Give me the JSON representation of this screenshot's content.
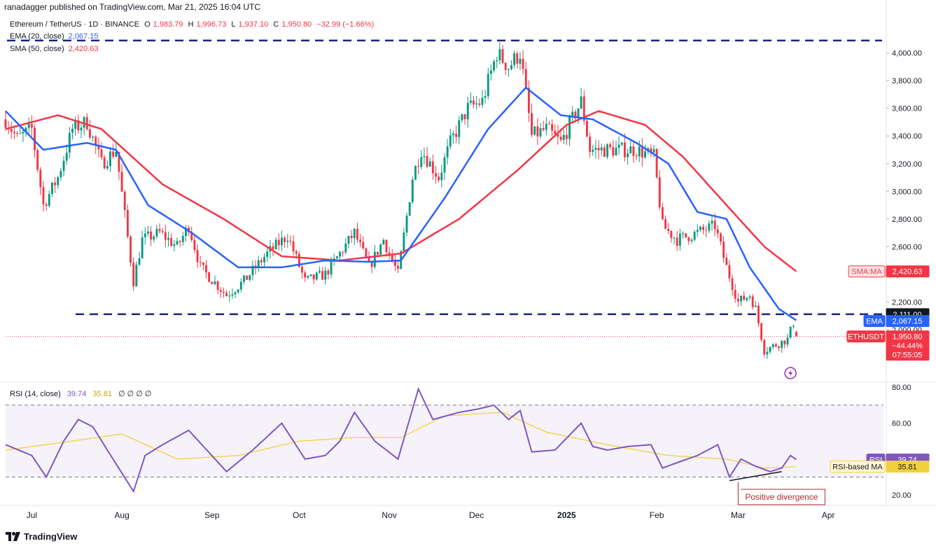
{
  "header": {
    "publisher": "ranadagger published on TradingView.com, Mar 21, 2025 16:04 UTC"
  },
  "legend": {
    "symbol": "Ethereum / TetherUS · 1D · BINANCE",
    "ohlc": {
      "o_label": "O",
      "o": "1,983.79",
      "h_label": "H",
      "h": "1,996.73",
      "l_label": "L",
      "l": "1,937.10",
      "c_label": "C",
      "c": "1,950.80",
      "change": "−32.99 (−1.66%)"
    },
    "ema_label": "EMA (20, close)",
    "ema_value": "2,067.15",
    "sma_label": "SMA (50, close)",
    "sma_value": "2,420.63",
    "rsi_label": "RSI (14, close)",
    "rsi_value": "39.74",
    "rsi_ma_value": "35.81",
    "rsi_extra": "∅ ∅ ∅ ∅"
  },
  "axis": {
    "unit": "USDT"
  },
  "badges": {
    "sma_tag": "SMA:MA",
    "sma_price": "2,420.63",
    "level_price": "2,111.00",
    "ema_tag": "EMA",
    "ema_price": "2,067.15",
    "sym_tag": "ETHUSDT",
    "last_price": "1,950.80",
    "last_change": "−44.44%",
    "countdown": "07:55:05",
    "rsi_tag": "RSI",
    "rsi_value": "39.74",
    "rsi_ma_tag": "RSI-based MA",
    "rsi_ma_value": "35.81"
  },
  "annotations": {
    "divergence": "Positive divergence"
  },
  "footer": {
    "brand": "TradingView"
  },
  "colors": {
    "up": "#089981",
    "down": "#f23645",
    "ema": "#2962ff",
    "sma": "#f23645",
    "rsi": "#7e57c2",
    "rsi_ma": "#f2d13f",
    "level": "#1a237e"
  },
  "chart_data": [
    {
      "type": "candlestick",
      "title": "Ethereum / TetherUS · 1D · BINANCE",
      "x_ticks": [
        "Jul",
        "Aug",
        "Sep",
        "Oct",
        "Nov",
        "Dec",
        "2025",
        "Feb",
        "Mar",
        "Apr"
      ],
      "x_range": [
        "2024-06-22",
        "2025-04-20"
      ],
      "y_ticks": [
        "2,000.00",
        "2,200.00",
        "2,400.00",
        "2,600.00",
        "2,800.00",
        "3,000.00",
        "3,200.00",
        "3,400.00",
        "3,600.00",
        "3,800.00",
        "4,000.00"
      ],
      "ylim": [
        1650,
        4130
      ],
      "horizontal_levels": [
        4090,
        2111
      ],
      "last_price": 1950.8,
      "price_keypoints": [
        [
          "2024-06-22",
          3520
        ],
        [
          "2024-06-26",
          3380
        ],
        [
          "2024-07-01",
          3450
        ],
        [
          "2024-07-05",
          2900
        ],
        [
          "2024-07-10",
          3100
        ],
        [
          "2024-07-15",
          3450
        ],
        [
          "2024-07-20",
          3500
        ],
        [
          "2024-07-25",
          3200
        ],
        [
          "2024-07-30",
          3300
        ],
        [
          "2024-08-05",
          2350
        ],
        [
          "2024-08-08",
          2650
        ],
        [
          "2024-08-14",
          2700
        ],
        [
          "2024-08-20",
          2600
        ],
        [
          "2024-08-24",
          2750
        ],
        [
          "2024-08-28",
          2450
        ],
        [
          "2024-09-06",
          2250
        ],
        [
          "2024-09-12",
          2350
        ],
        [
          "2024-09-20",
          2550
        ],
        [
          "2024-09-27",
          2680
        ],
        [
          "2024-10-03",
          2350
        ],
        [
          "2024-10-10",
          2400
        ],
        [
          "2024-10-15",
          2550
        ],
        [
          "2024-10-20",
          2700
        ],
        [
          "2024-10-25",
          2450
        ],
        [
          "2024-10-30",
          2650
        ],
        [
          "2024-11-04",
          2400
        ],
        [
          "2024-11-09",
          3100
        ],
        [
          "2024-11-12",
          3300
        ],
        [
          "2024-11-18",
          3100
        ],
        [
          "2024-11-22",
          3350
        ],
        [
          "2024-11-28",
          3600
        ],
        [
          "2024-12-03",
          3650
        ],
        [
          "2024-12-08",
          4000
        ],
        [
          "2024-12-12",
          3900
        ],
        [
          "2024-12-16",
          4000
        ],
        [
          "2024-12-20",
          3400
        ],
        [
          "2024-12-25",
          3450
        ],
        [
          "2024-12-30",
          3350
        ],
        [
          "2025-01-06",
          3650
        ],
        [
          "2025-01-09",
          3300
        ],
        [
          "2025-01-15",
          3300
        ],
        [
          "2025-01-20",
          3300
        ],
        [
          "2025-01-25",
          3300
        ],
        [
          "2025-01-31",
          3250
        ],
        [
          "2025-02-03",
          2750
        ],
        [
          "2025-02-08",
          2650
        ],
        [
          "2025-02-15",
          2700
        ],
        [
          "2025-02-21",
          2750
        ],
        [
          "2025-02-25",
          2450
        ],
        [
          "2025-03-01",
          2200
        ],
        [
          "2025-03-05",
          2250
        ],
        [
          "2025-03-07",
          2150
        ],
        [
          "2025-03-10",
          1850
        ],
        [
          "2025-03-15",
          1900
        ],
        [
          "2025-03-18",
          1930
        ],
        [
          "2025-03-20",
          2050
        ],
        [
          "2025-03-21",
          1950.8
        ]
      ],
      "ema20_keypoints": [
        [
          "2024-06-22",
          3580
        ],
        [
          "2024-07-05",
          3300
        ],
        [
          "2024-07-20",
          3350
        ],
        [
          "2024-07-30",
          3300
        ],
        [
          "2024-08-10",
          2900
        ],
        [
          "2024-08-25",
          2700
        ],
        [
          "2024-09-10",
          2450
        ],
        [
          "2024-09-25",
          2450
        ],
        [
          "2024-10-10",
          2500
        ],
        [
          "2024-10-25",
          2490
        ],
        [
          "2024-11-05",
          2500
        ],
        [
          "2024-11-20",
          2950
        ],
        [
          "2024-12-05",
          3450
        ],
        [
          "2024-12-18",
          3750
        ],
        [
          "2024-12-30",
          3550
        ],
        [
          "2025-01-10",
          3520
        ],
        [
          "2025-01-25",
          3350
        ],
        [
          "2025-02-05",
          3200
        ],
        [
          "2025-02-15",
          2850
        ],
        [
          "2025-02-25",
          2800
        ],
        [
          "2025-03-05",
          2450
        ],
        [
          "2025-03-15",
          2150
        ],
        [
          "2025-03-21",
          2067.15
        ]
      ],
      "sma50_keypoints": [
        [
          "2024-06-22",
          3450
        ],
        [
          "2024-07-10",
          3550
        ],
        [
          "2024-07-25",
          3450
        ],
        [
          "2024-08-15",
          3050
        ],
        [
          "2024-09-05",
          2800
        ],
        [
          "2024-09-25",
          2530
        ],
        [
          "2024-10-15",
          2500
        ],
        [
          "2024-11-05",
          2550
        ],
        [
          "2024-11-25",
          2800
        ],
        [
          "2024-12-15",
          3150
        ],
        [
          "2025-01-01",
          3480
        ],
        [
          "2025-01-12",
          3580
        ],
        [
          "2025-01-28",
          3480
        ],
        [
          "2025-02-10",
          3250
        ],
        [
          "2025-02-25",
          2900
        ],
        [
          "2025-03-10",
          2600
        ],
        [
          "2025-03-21",
          2420.63
        ]
      ]
    },
    {
      "type": "line",
      "title": "RSI (14, close)",
      "y_ticks": [
        "20.00",
        "40.00",
        "60.00",
        "80.00"
      ],
      "ylim": [
        15,
        82
      ],
      "bands": {
        "lower": 30,
        "upper": 70
      },
      "rsi_keypoints": [
        [
          "2024-06-22",
          48
        ],
        [
          "2024-07-01",
          42
        ],
        [
          "2024-07-06",
          30
        ],
        [
          "2024-07-12",
          50
        ],
        [
          "2024-07-17",
          62
        ],
        [
          "2024-07-22",
          58
        ],
        [
          "2024-07-27",
          45
        ],
        [
          "2024-08-05",
          22
        ],
        [
          "2024-08-09",
          42
        ],
        [
          "2024-08-15",
          48
        ],
        [
          "2024-08-24",
          56
        ],
        [
          "2024-09-06",
          33
        ],
        [
          "2024-09-15",
          45
        ],
        [
          "2024-09-25",
          60
        ],
        [
          "2024-10-03",
          40
        ],
        [
          "2024-10-10",
          42
        ],
        [
          "2024-10-15",
          50
        ],
        [
          "2024-10-20",
          66
        ],
        [
          "2024-10-27",
          50
        ],
        [
          "2024-11-04",
          40
        ],
        [
          "2024-11-11",
          79
        ],
        [
          "2024-11-16",
          62
        ],
        [
          "2024-11-25",
          66
        ],
        [
          "2024-12-02",
          68
        ],
        [
          "2024-12-07",
          70
        ],
        [
          "2024-12-12",
          62
        ],
        [
          "2024-12-16",
          67
        ],
        [
          "2024-12-20",
          44
        ],
        [
          "2024-12-28",
          45
        ],
        [
          "2025-01-06",
          60
        ],
        [
          "2025-01-10",
          47
        ],
        [
          "2025-01-15",
          45
        ],
        [
          "2025-01-22",
          47
        ],
        [
          "2025-01-30",
          48
        ],
        [
          "2025-02-03",
          35
        ],
        [
          "2025-02-08",
          38
        ],
        [
          "2025-02-15",
          42
        ],
        [
          "2025-02-22",
          48
        ],
        [
          "2025-02-26",
          30
        ],
        [
          "2025-03-02",
          40
        ],
        [
          "2025-03-07",
          36
        ],
        [
          "2025-03-12",
          33
        ],
        [
          "2025-03-16",
          35
        ],
        [
          "2025-03-19",
          42
        ],
        [
          "2025-03-21",
          39.74
        ]
      ],
      "rsi_ma_keypoints": [
        [
          "2024-06-22",
          45
        ],
        [
          "2024-07-15",
          50
        ],
        [
          "2024-08-01",
          54
        ],
        [
          "2024-08-20",
          40
        ],
        [
          "2024-09-10",
          42
        ],
        [
          "2024-10-01",
          50
        ],
        [
          "2024-10-20",
          52
        ],
        [
          "2024-11-05",
          52
        ],
        [
          "2024-11-20",
          64
        ],
        [
          "2024-12-10",
          66
        ],
        [
          "2024-12-25",
          55
        ],
        [
          "2025-01-15",
          48
        ],
        [
          "2025-02-05",
          42
        ],
        [
          "2025-02-25",
          40
        ],
        [
          "2025-03-10",
          35
        ],
        [
          "2025-03-21",
          35.81
        ]
      ],
      "divergence_line": [
        [
          "2025-02-26",
          28
        ],
        [
          "2025-03-16",
          33
        ]
      ]
    }
  ]
}
